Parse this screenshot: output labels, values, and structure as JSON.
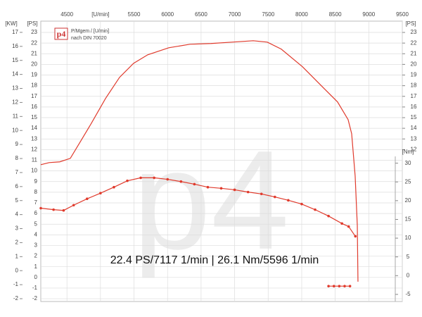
{
  "chart_data": {
    "type": "line",
    "annotation": "22.4 PS/7117 1/min | 26.1 Nm/5596 1/min",
    "legend_lines": [
      "P/Mgem / [U/min]",
      "nach DIN 70020"
    ],
    "logo": "p4",
    "xlim": [
      4110,
      9500
    ],
    "xticks": [
      4500,
      {
        "value": 5000,
        "label": "[U/min]"
      },
      5500,
      6000,
      6500,
      7000,
      7500,
      8000,
      8500,
      9000,
      9500
    ],
    "ylabel": "[PS]",
    "ylim": [
      -2.26,
      24.06
    ],
    "yticks": [
      -2,
      -1,
      0,
      1,
      2,
      3,
      4,
      5,
      6,
      7,
      8,
      9,
      10,
      11,
      12,
      13,
      14,
      15,
      16,
      17,
      18,
      19,
      20,
      21,
      22,
      23
    ],
    "y_kw": {
      "label": "[KW]",
      "lim": [
        -2.2,
        17.8
      ],
      "ticks": [
        -2,
        -1,
        0,
        1,
        2,
        3,
        4,
        5,
        6,
        7,
        8,
        9,
        10,
        11,
        12,
        13,
        14,
        15,
        16,
        17
      ]
    },
    "y_ps_right": {
      "label": "[PS]",
      "ticks": [
        12,
        13,
        14,
        15,
        16,
        17,
        18,
        19,
        20,
        21,
        22,
        23
      ]
    },
    "y2label": "[Nm]",
    "y2lim": [
      -6.9,
      67.9
    ],
    "y2ticks": [
      -5,
      0,
      5,
      10,
      15,
      20,
      25,
      30
    ],
    "grid": true,
    "series": [
      {
        "color": "#e03a2c",
        "axis": "y",
        "markers": false,
        "x": [
          4110,
          4236,
          4393,
          4550,
          4708,
          4865,
          5075,
          5284,
          5494,
          5704,
          6018,
          6333,
          6648,
          6962,
          7277,
          7487,
          7696,
          8011,
          8325,
          8535,
          8692,
          8745,
          8797,
          8829,
          8839
        ],
        "values": [
          10.58,
          10.78,
          10.85,
          11.18,
          12.83,
          14.48,
          16.8,
          18.78,
          20.1,
          20.9,
          21.56,
          21.89,
          21.96,
          22.09,
          22.22,
          22.09,
          21.43,
          19.78,
          17.79,
          16.47,
          14.81,
          13.49,
          9.52,
          4.89,
          -0.4
        ]
      },
      {
        "color": "#e03a2c",
        "axis": "y2",
        "markers": true,
        "x": [
          4110,
          4300,
          4450,
          4600,
          4800,
          5000,
          5200,
          5400,
          5600,
          5800,
          6000,
          6200,
          6400,
          6600,
          6800,
          7000,
          7200,
          7400,
          7600,
          7800,
          8000,
          8200,
          8400,
          8600,
          8700,
          8800
        ],
        "values": [
          18.0,
          17.6,
          17.4,
          18.8,
          20.5,
          22.0,
          23.6,
          25.3,
          26.1,
          26.1,
          25.7,
          25.1,
          24.4,
          23.6,
          23.3,
          22.9,
          22.3,
          21.8,
          21.0,
          20.1,
          19.1,
          17.6,
          15.9,
          13.9,
          13.1,
          10.5
        ]
      },
      {
        "color": "#e03a2c",
        "axis": "y2",
        "markers": true,
        "x": [
          8400,
          8480,
          8560,
          8640,
          8720
        ],
        "values": [
          -2.8,
          -2.8,
          -2.8,
          -2.8,
          -2.8
        ]
      }
    ]
  }
}
